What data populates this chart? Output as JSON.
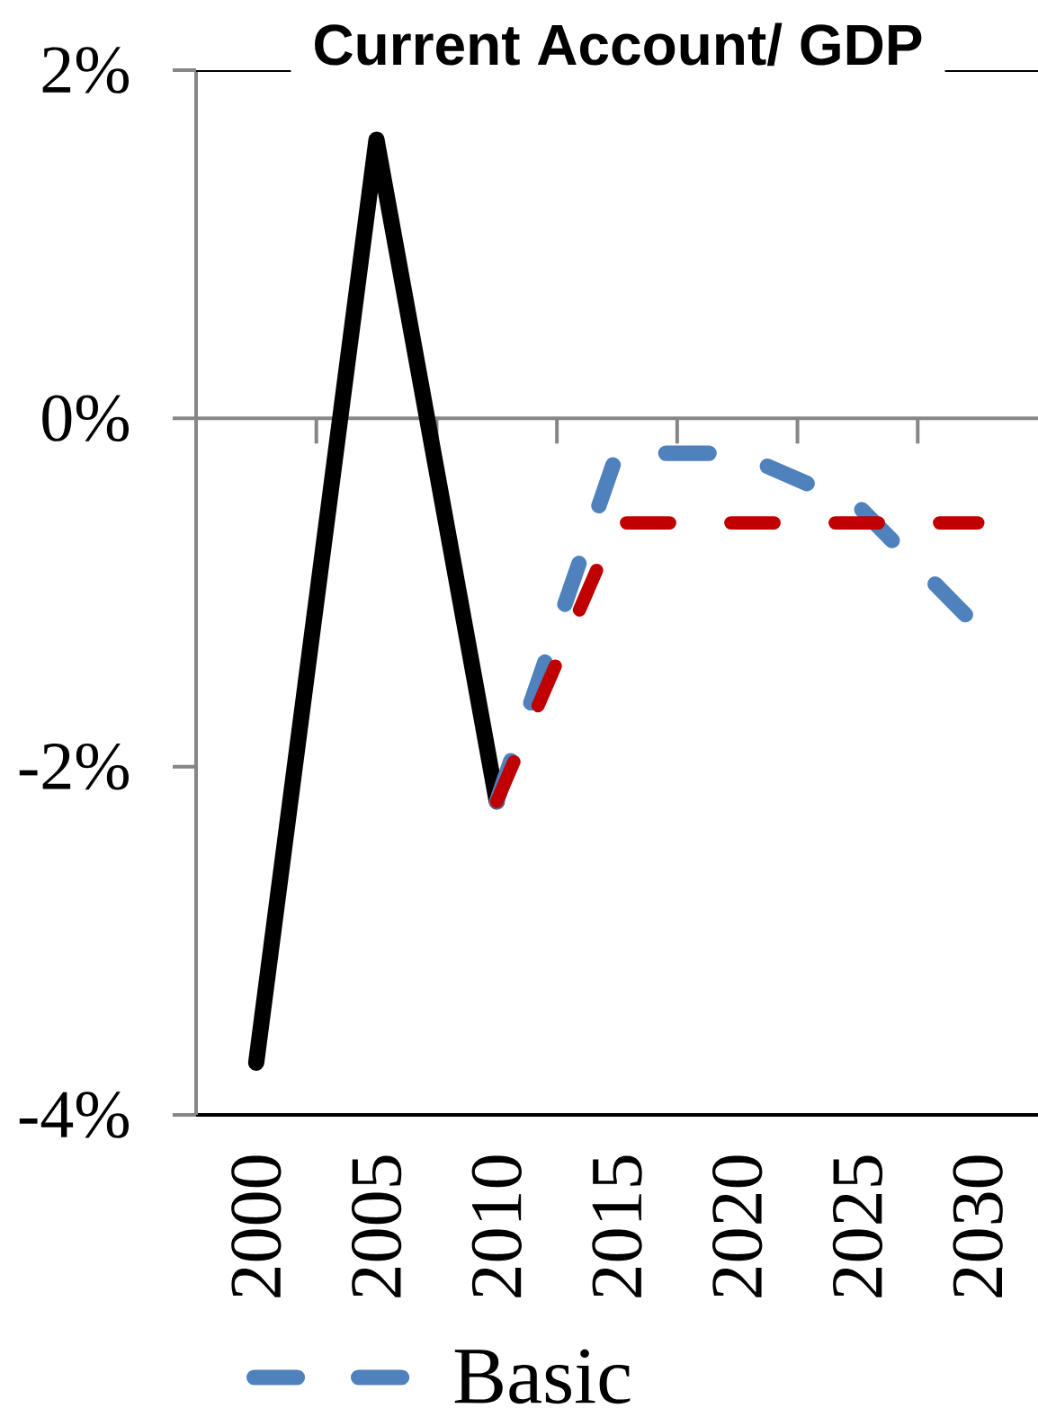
{
  "chart_data": {
    "type": "line",
    "title": "Current Account/ GDP",
    "categories": [
      "2000",
      "2005",
      "2010",
      "2015",
      "2020",
      "2025",
      "2030"
    ],
    "series": [
      {
        "color": "#000000",
        "line_style": "solid",
        "values": [
          -3.7,
          1.6,
          -2.2,
          null,
          null,
          null,
          null
        ]
      },
      {
        "name": "Basic",
        "color": "#4f81bd",
        "line_style": "dashed",
        "values": [
          null,
          null,
          -2.2,
          -0.2,
          -0.2,
          -0.5,
          -1.2
        ]
      },
      {
        "color": "#c00000",
        "line_style": "dashed",
        "values": [
          null,
          null,
          -2.2,
          -0.6,
          -0.6,
          -0.6,
          -0.6
        ]
      }
    ],
    "ylim": [
      -4,
      2
    ],
    "yticks": [
      {
        "value": -4,
        "label": "-4%"
      },
      {
        "value": -2,
        "label": "-2%"
      },
      {
        "value": 0,
        "label": "0%"
      },
      {
        "value": 2,
        "label": "2%"
      }
    ],
    "legend": "bottom",
    "marker": "none"
  }
}
